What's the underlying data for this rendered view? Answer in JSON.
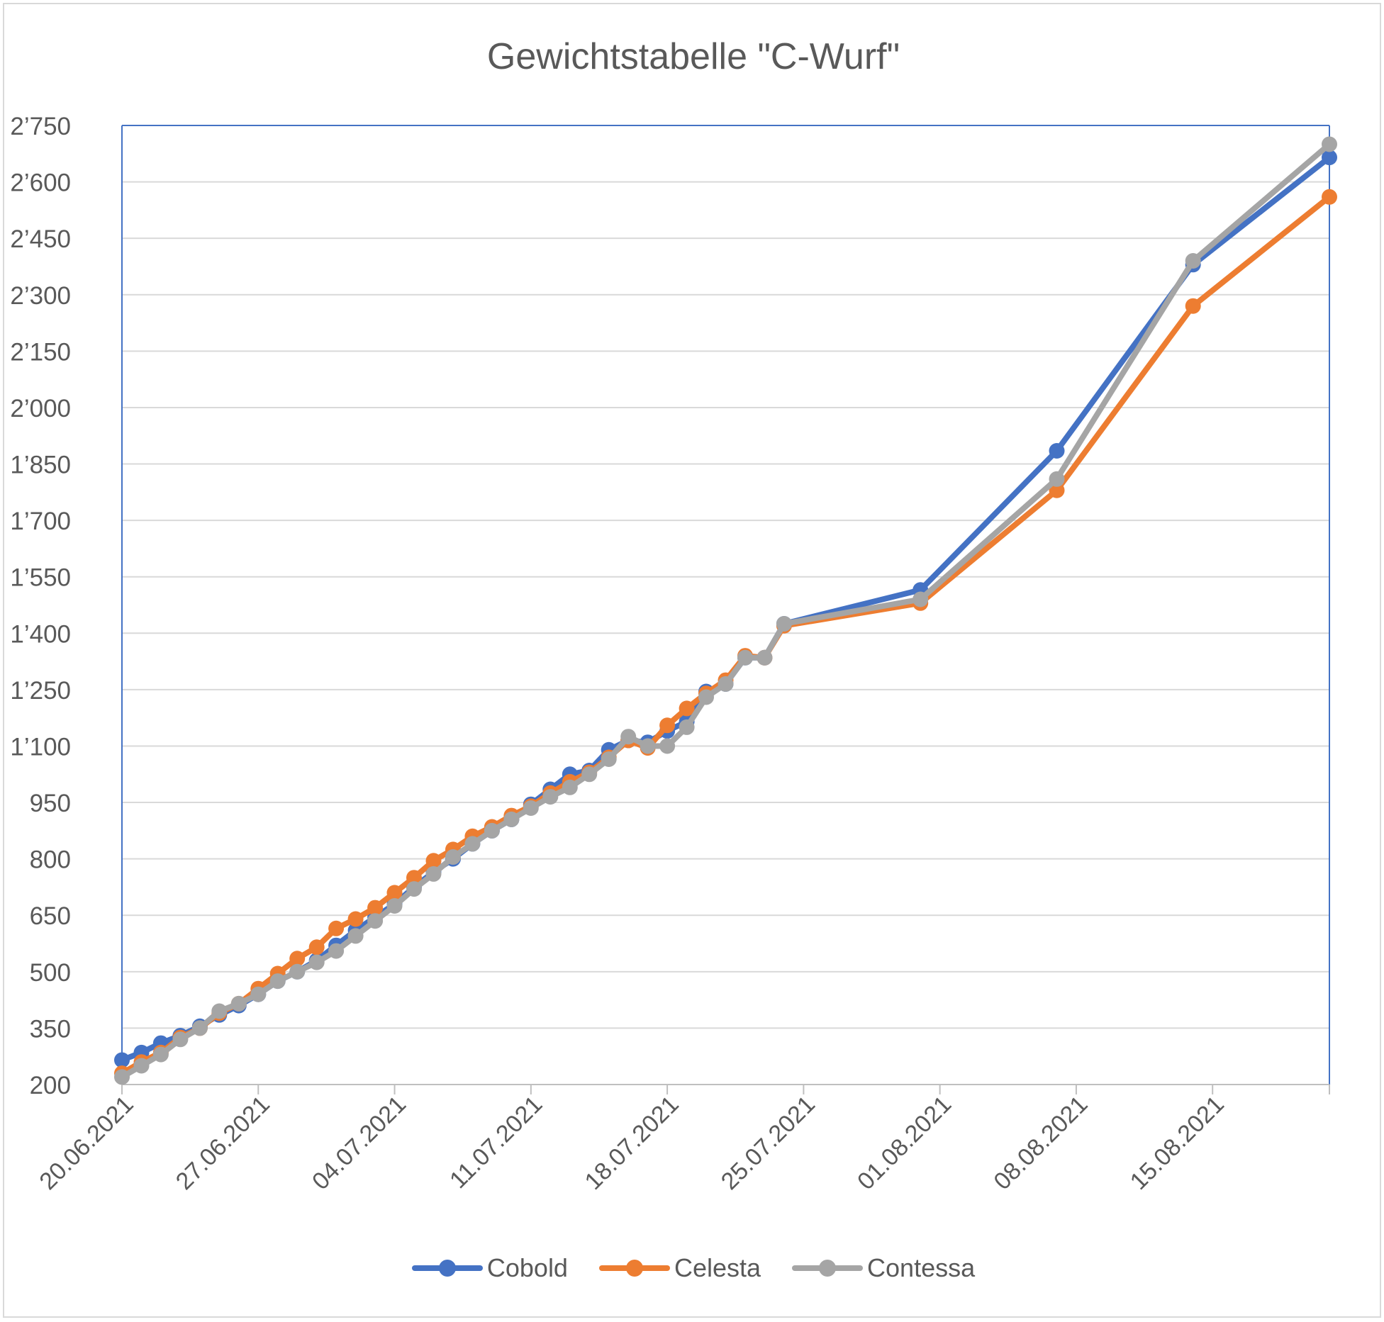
{
  "chart_data": {
    "type": "line",
    "title": "Gewichtstabelle \"C-Wurf\"",
    "ylim": [
      200,
      2750
    ],
    "y_ticks": [
      "2’750",
      "2’600",
      "2’450",
      "2’300",
      "2’150",
      "2’000",
      "1’850",
      "1’700",
      "1’550",
      "1’400",
      "1’250",
      "1’100",
      "950",
      "800",
      "650",
      "500",
      "350",
      "200"
    ],
    "x_axis": {
      "type": "date",
      "start": "2021-06-20",
      "end": "2021-08-21"
    },
    "x_ticks": [
      "20.06.2021",
      "27.06.2021",
      "04.07.2021",
      "11.07.2021",
      "18.07.2021",
      "25.07.2021",
      "01.08.2021",
      "08.08.2021",
      "15.08.2021"
    ],
    "grid": true,
    "legend_position": "bottom",
    "series": [
      {
        "name": "Cobold",
        "color": "#4472c4",
        "x": [
          "2021-06-20",
          "2021-06-21",
          "2021-06-22",
          "2021-06-23",
          "2021-06-24",
          "2021-06-25",
          "2021-06-26",
          "2021-06-27",
          "2021-06-28",
          "2021-06-29",
          "2021-06-30",
          "2021-07-01",
          "2021-07-02",
          "2021-07-03",
          "2021-07-04",
          "2021-07-05",
          "2021-07-06",
          "2021-07-07",
          "2021-07-08",
          "2021-07-09",
          "2021-07-10",
          "2021-07-11",
          "2021-07-12",
          "2021-07-13",
          "2021-07-14",
          "2021-07-15",
          "2021-07-16",
          "2021-07-17",
          "2021-07-18",
          "2021-07-19",
          "2021-07-20",
          "2021-07-21",
          "2021-07-22",
          "2021-07-23",
          "2021-07-24",
          "2021-07-31",
          "2021-08-07",
          "2021-08-14",
          "2021-08-21"
        ],
        "values": [
          265,
          285,
          310,
          330,
          355,
          385,
          410,
          440,
          475,
          500,
          530,
          570,
          610,
          645,
          680,
          725,
          765,
          800,
          840,
          875,
          905,
          945,
          985,
          1025,
          1035,
          1090,
          1115,
          1110,
          1140,
          1165,
          1245,
          1265,
          1335,
          1335,
          1425,
          1515,
          1885,
          2380,
          2665
        ]
      },
      {
        "name": "Celesta",
        "color": "#ed7d31",
        "x": [
          "2021-06-20",
          "2021-06-21",
          "2021-06-22",
          "2021-06-23",
          "2021-06-24",
          "2021-06-25",
          "2021-06-26",
          "2021-06-27",
          "2021-06-28",
          "2021-06-29",
          "2021-06-30",
          "2021-07-01",
          "2021-07-02",
          "2021-07-03",
          "2021-07-04",
          "2021-07-05",
          "2021-07-06",
          "2021-07-07",
          "2021-07-08",
          "2021-07-09",
          "2021-07-10",
          "2021-07-11",
          "2021-07-12",
          "2021-07-13",
          "2021-07-14",
          "2021-07-15",
          "2021-07-16",
          "2021-07-17",
          "2021-07-18",
          "2021-07-19",
          "2021-07-20",
          "2021-07-21",
          "2021-07-22",
          "2021-07-23",
          "2021-07-24",
          "2021-07-31",
          "2021-08-07",
          "2021-08-14",
          "2021-08-21"
        ],
        "values": [
          230,
          260,
          285,
          325,
          350,
          390,
          415,
          455,
          495,
          535,
          565,
          615,
          640,
          670,
          710,
          750,
          795,
          825,
          860,
          885,
          915,
          940,
          975,
          1005,
          1030,
          1070,
          1115,
          1095,
          1155,
          1200,
          1240,
          1275,
          1340,
          1335,
          1420,
          1480,
          1780,
          2270,
          2560
        ]
      },
      {
        "name": "Contessa",
        "color": "#a5a5a5",
        "x": [
          "2021-06-20",
          "2021-06-21",
          "2021-06-22",
          "2021-06-23",
          "2021-06-24",
          "2021-06-25",
          "2021-06-26",
          "2021-06-27",
          "2021-06-28",
          "2021-06-29",
          "2021-06-30",
          "2021-07-01",
          "2021-07-02",
          "2021-07-03",
          "2021-07-04",
          "2021-07-05",
          "2021-07-06",
          "2021-07-07",
          "2021-07-08",
          "2021-07-09",
          "2021-07-10",
          "2021-07-11",
          "2021-07-12",
          "2021-07-13",
          "2021-07-14",
          "2021-07-15",
          "2021-07-16",
          "2021-07-17",
          "2021-07-18",
          "2021-07-19",
          "2021-07-20",
          "2021-07-21",
          "2021-07-22",
          "2021-07-23",
          "2021-07-24",
          "2021-07-31",
          "2021-08-07",
          "2021-08-14",
          "2021-08-21"
        ],
        "values": [
          220,
          250,
          280,
          320,
          350,
          395,
          415,
          440,
          475,
          500,
          525,
          555,
          595,
          635,
          675,
          720,
          760,
          805,
          840,
          875,
          905,
          935,
          965,
          990,
          1025,
          1065,
          1125,
          1100,
          1100,
          1150,
          1230,
          1265,
          1335,
          1335,
          1425,
          1490,
          1810,
          2390,
          2700
        ]
      }
    ]
  }
}
